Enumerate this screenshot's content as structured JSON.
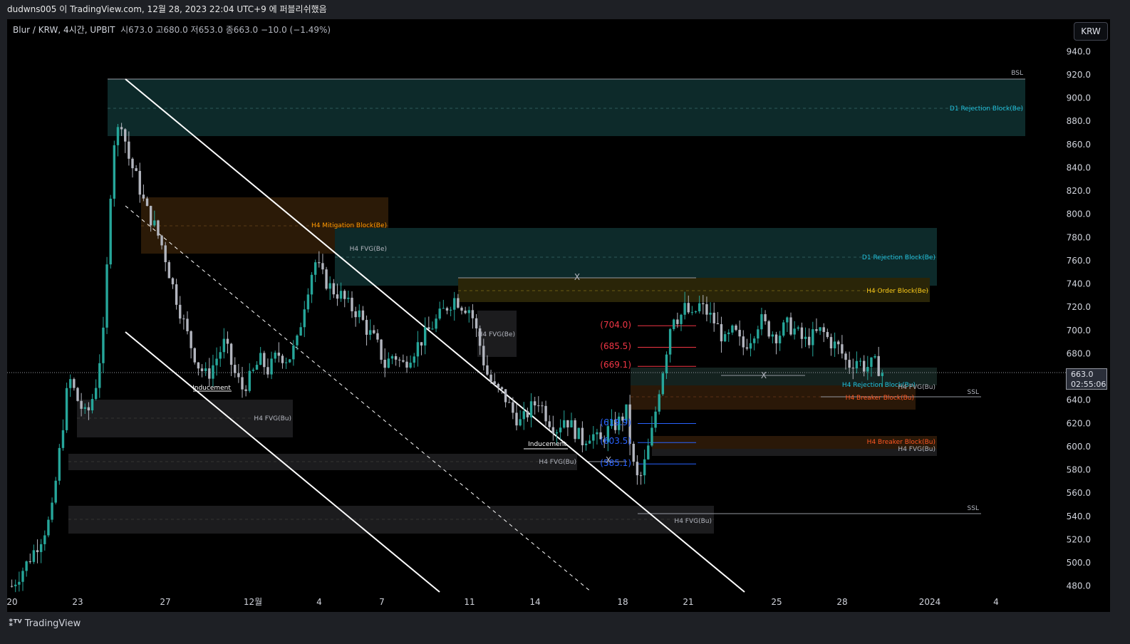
{
  "header": {
    "publish_text": "dudwns005 이 TradingView.com, 12월 28, 2023 22:04 UTC+9 에 퍼블리쉬했음"
  },
  "symbol_info": {
    "symbol": "Blur / KRW, 4시간, UPBIT",
    "ohlc": "시673.0  고680.0  저653.0  종663.0  −10.0 (−1.49%)"
  },
  "currency": "KRW",
  "current_price": {
    "value": "663.0",
    "countdown": "02:55:06"
  },
  "footer": {
    "brand": "TradingView",
    "brand_icon": "tradingview-logo-icon"
  },
  "colors": {
    "up": "#26a69a",
    "down": "#b2b5be",
    "teal_zone": "#0d2a2a",
    "orange_zone": "#2b1a07",
    "fvg_zone": "#1c1c1e",
    "red_level": "#f23645",
    "blue_level": "#2962ff",
    "order_block": "#f5c518",
    "mitigation": "#ff9800",
    "breaker": "#ff5722",
    "rejection": "#22c1dc"
  },
  "chart_data": {
    "type": "candlestick",
    "timeframe": "4시간",
    "y_axis": {
      "ticks": [
        "940.0",
        "920.0",
        "900.0",
        "880.0",
        "860.0",
        "840.0",
        "820.0",
        "800.0",
        "780.0",
        "760.0",
        "740.0",
        "720.0",
        "700.0",
        "680.0",
        "660.0",
        "640.0",
        "620.0",
        "600.0",
        "580.0",
        "560.0",
        "540.0",
        "520.0",
        "500.0",
        "480.0"
      ],
      "range": [
        472,
        948
      ]
    },
    "x_axis": {
      "ticks": [
        "20",
        "23",
        "27",
        "12월",
        "4",
        "7",
        "11",
        "14",
        "18",
        "21",
        "25",
        "28",
        "2024",
        "4"
      ]
    },
    "close_path": [
      [
        20.0,
        480
      ],
      [
        20.7,
        500
      ],
      [
        21.3,
        520
      ],
      [
        21.8,
        540
      ],
      [
        22.2,
        600
      ],
      [
        22.6,
        660
      ],
      [
        23.0,
        640
      ],
      [
        23.4,
        625
      ],
      [
        23.8,
        650
      ],
      [
        24.2,
        700
      ],
      [
        24.6,
        860
      ],
      [
        25.0,
        880
      ],
      [
        25.3,
        850
      ],
      [
        25.7,
        830
      ],
      [
        26.1,
        805
      ],
      [
        26.5,
        790
      ],
      [
        26.9,
        770
      ],
      [
        27.3,
        740
      ],
      [
        27.7,
        715
      ],
      [
        28.1,
        690
      ],
      [
        28.5,
        670
      ],
      [
        28.9,
        660
      ],
      [
        29.3,
        675
      ],
      [
        29.7,
        690
      ],
      [
        30.1,
        665
      ],
      [
        30.5,
        650
      ],
      [
        30.9,
        660
      ],
      [
        31.3,
        675
      ],
      [
        31.7,
        665
      ],
      [
        32.1,
        680
      ],
      [
        32.6,
        675
      ],
      [
        33.0,
        690
      ],
      [
        33.4,
        730
      ],
      [
        33.8,
        760
      ],
      [
        34.2,
        745
      ],
      [
        34.6,
        735
      ],
      [
        35.0,
        730
      ],
      [
        35.4,
        720
      ],
      [
        35.8,
        715
      ],
      [
        36.2,
        700
      ],
      [
        36.6,
        690
      ],
      [
        37.0,
        670
      ],
      [
        37.4,
        680
      ],
      [
        37.8,
        670
      ],
      [
        38.2,
        680
      ],
      [
        38.6,
        690
      ],
      [
        39.0,
        700
      ],
      [
        39.4,
        710
      ],
      [
        39.8,
        720
      ],
      [
        40.2,
        728
      ],
      [
        40.5,
        722
      ],
      [
        40.9,
        718
      ],
      [
        41.3,
        690
      ],
      [
        41.6,
        665
      ],
      [
        42.0,
        650
      ],
      [
        42.4,
        645
      ],
      [
        42.8,
        630
      ],
      [
        43.2,
        620
      ],
      [
        43.6,
        632
      ],
      [
        44.0,
        640
      ],
      [
        44.4,
        625
      ],
      [
        44.8,
        615
      ],
      [
        45.2,
        625
      ],
      [
        45.6,
        615
      ],
      [
        46.0,
        605
      ],
      [
        46.4,
        612
      ],
      [
        46.8,
        603
      ],
      [
        47.2,
        615
      ],
      [
        47.6,
        620
      ],
      [
        48.0,
        630
      ],
      [
        48.2,
        600
      ],
      [
        48.4,
        575
      ],
      [
        48.6,
        570
      ],
      [
        48.9,
        590
      ],
      [
        49.2,
        615
      ],
      [
        49.5,
        650
      ],
      [
        49.8,
        680
      ],
      [
        50.1,
        715
      ],
      [
        50.4,
        710
      ],
      [
        50.7,
        720
      ],
      [
        51.0,
        710
      ],
      [
        51.3,
        722
      ],
      [
        51.7,
        715
      ],
      [
        52.1,
        705
      ],
      [
        52.5,
        690
      ],
      [
        52.9,
        700
      ],
      [
        53.3,
        685
      ],
      [
        53.7,
        695
      ],
      [
        54.1,
        710
      ],
      [
        54.5,
        700
      ],
      [
        54.9,
        695
      ],
      [
        55.3,
        705
      ],
      [
        55.7,
        700
      ],
      [
        56.1,
        690
      ],
      [
        56.5,
        695
      ],
      [
        56.9,
        700
      ],
      [
        57.3,
        690
      ],
      [
        57.7,
        685
      ],
      [
        58.1,
        670
      ],
      [
        58.5,
        675
      ],
      [
        58.9,
        668
      ],
      [
        59.3,
        672
      ],
      [
        59.7,
        663
      ]
    ],
    "annotations": [
      {
        "text": "BSL",
        "level": 916
      },
      {
        "text": "D1 Rejection Block(Be)",
        "level": 891
      },
      {
        "text": "H4 Mitigation Block(Be)",
        "level": 789
      },
      {
        "text": "H4 FVG(Be)",
        "level": 770
      },
      {
        "text": "D1 Rejection Block(Be)",
        "level": 763
      },
      {
        "text": "X",
        "level": 745
      },
      {
        "text": "H4 Order Block(Be)",
        "level": 734
      },
      {
        "text": "H4 FVG(Be)",
        "level": 697
      },
      {
        "text": "(704.0)",
        "level": 704
      },
      {
        "text": "(685.5)",
        "level": 685.5
      },
      {
        "text": "(669.1)",
        "level": 669.1
      },
      {
        "text": "X",
        "level": 657
      },
      {
        "text": "H4 Rejection Block(Bu)",
        "level": 652
      },
      {
        "text": "H4 FVG(Bu)",
        "level": 650
      },
      {
        "text": "SSL",
        "level": 646
      },
      {
        "text": "H4 Breaker Block(Bu)",
        "level": 641
      },
      {
        "text": "Inducement",
        "level": 649
      },
      {
        "text": "H4 FVG(Bu)",
        "level": 621
      },
      {
        "text": "(619.9)",
        "level": 619.9
      },
      {
        "text": "H4 Breaker Block(Bu)",
        "level": 604
      },
      {
        "text": "(603.5)",
        "level": 603.5
      },
      {
        "text": "Inducement",
        "level": 602
      },
      {
        "text": "H4 FVG(Bu)",
        "level": 598
      },
      {
        "text": "H4 FVG(Bu)",
        "level": 587
      },
      {
        "text": "X",
        "level": 587
      },
      {
        "text": "(585.1)",
        "level": 585.1
      },
      {
        "text": "SSL",
        "level": 546
      },
      {
        "text": "H4 FVG(Bu)",
        "level": 536
      }
    ]
  }
}
